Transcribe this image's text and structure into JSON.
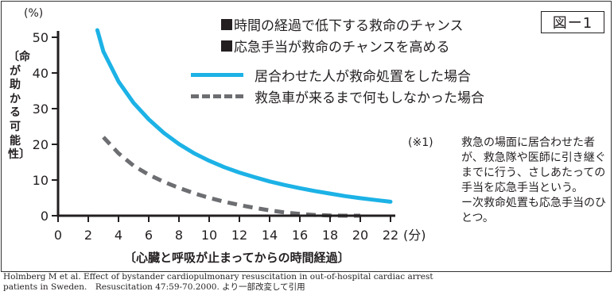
{
  "figure_label": "図ー1",
  "title_lines": [
    "時間の経過で低下する救命のチャンス",
    "応急手当が救命のチャンスを高める"
  ],
  "legend": [
    "居合わせた人が救命処置をした場合",
    "救急車が来るまで何もしなかった場合"
  ],
  "y_unit": "(%)",
  "ylabel": "〔命が助かる可能性〕",
  "xlabel": "〔心臓と呼吸が止まってからの時間経過〕",
  "x_unit": "(分)",
  "note": {
    "mark": "(※1)",
    "lines": [
      "救急の場面に居合わせた者が、救急隊や医師に引き継ぐまでに行う、さしあたっての手当を応急手当という。",
      "ー次救命処置も応急手当のひとつ。"
    ]
  },
  "citation": [
    "Holmberg M et al. Effect of bystander cardiopulmonary resuscitation in out-of-hospital cardiac arrest",
    "patients in Sweden.　Resuscitation 47:59-70.2000. より一部改変して引用"
  ],
  "colors": {
    "bystander": "#1cb2e6",
    "no_action": "#6d6e71",
    "axis": "#231f20"
  },
  "chart_data": {
    "type": "line",
    "x_ticks": [
      0,
      2,
      4,
      6,
      8,
      10,
      12,
      14,
      16,
      18,
      20,
      22
    ],
    "y_ticks": [
      0,
      10,
      20,
      30,
      40,
      50
    ],
    "xlim": [
      0,
      22
    ],
    "ylim": [
      0,
      50
    ],
    "series": [
      {
        "name": "居合わせた人が救命処置をした場合",
        "style": "solid",
        "x": [
          2.6,
          3,
          4,
          5,
          6,
          7,
          8,
          9,
          10,
          11,
          12,
          13,
          14,
          15,
          16,
          17,
          18,
          19,
          20,
          21,
          22
        ],
        "y": [
          52,
          46,
          37.6,
          31.6,
          27,
          23.2,
          20.1,
          17.5,
          15.4,
          13.6,
          12.1,
          10.8,
          9.6,
          8.6,
          7.7,
          6.9,
          6.2,
          5.5,
          4.9,
          4.4,
          3.9
        ]
      },
      {
        "name": "救急車が来るまで何もしなかった場合",
        "style": "dashed",
        "x": [
          3,
          4,
          5,
          6,
          7,
          8,
          9,
          10,
          11,
          12,
          13,
          14,
          15,
          16,
          17,
          18,
          19,
          20
        ],
        "y": [
          22,
          17.5,
          14,
          11.5,
          9.5,
          7.8,
          6.3,
          5,
          3.9,
          3,
          2.2,
          1.5,
          0.9,
          0.5,
          0.2,
          0.05,
          0,
          0
        ]
      }
    ]
  }
}
